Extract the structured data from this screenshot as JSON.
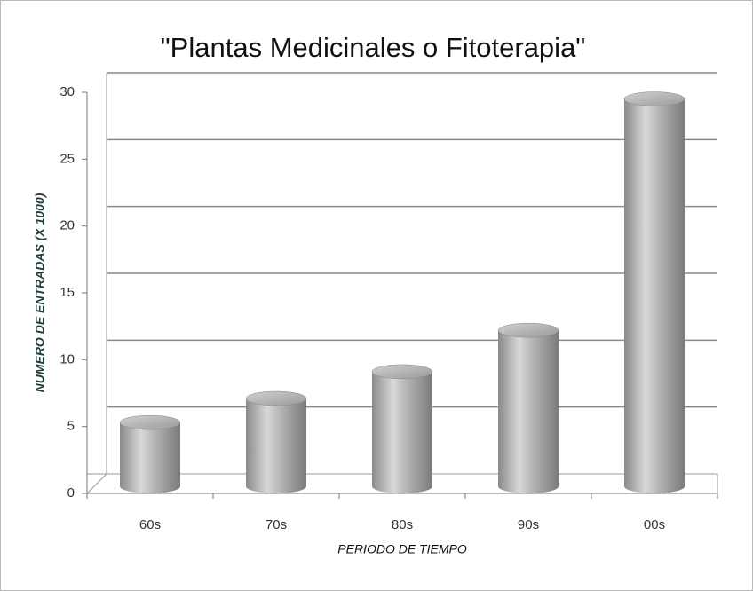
{
  "chart_data": {
    "type": "bar",
    "title": "\"Plantas Medicinales o Fitoterapia\"",
    "x_label": "PERIODO DE TIEMPO",
    "y_label": "NUMERO DE ENTRADAS (X 1000)",
    "categories": [
      "60s",
      "70s",
      "80s",
      "90s",
      "00s"
    ],
    "values": [
      5.3,
      7.1,
      9.1,
      12.2,
      29.5
    ],
    "color": "#a9a9a9",
    "ylim": [
      0,
      30
    ],
    "yticks": [
      0,
      5,
      10,
      15,
      20,
      25,
      30
    ],
    "grid": true
  }
}
